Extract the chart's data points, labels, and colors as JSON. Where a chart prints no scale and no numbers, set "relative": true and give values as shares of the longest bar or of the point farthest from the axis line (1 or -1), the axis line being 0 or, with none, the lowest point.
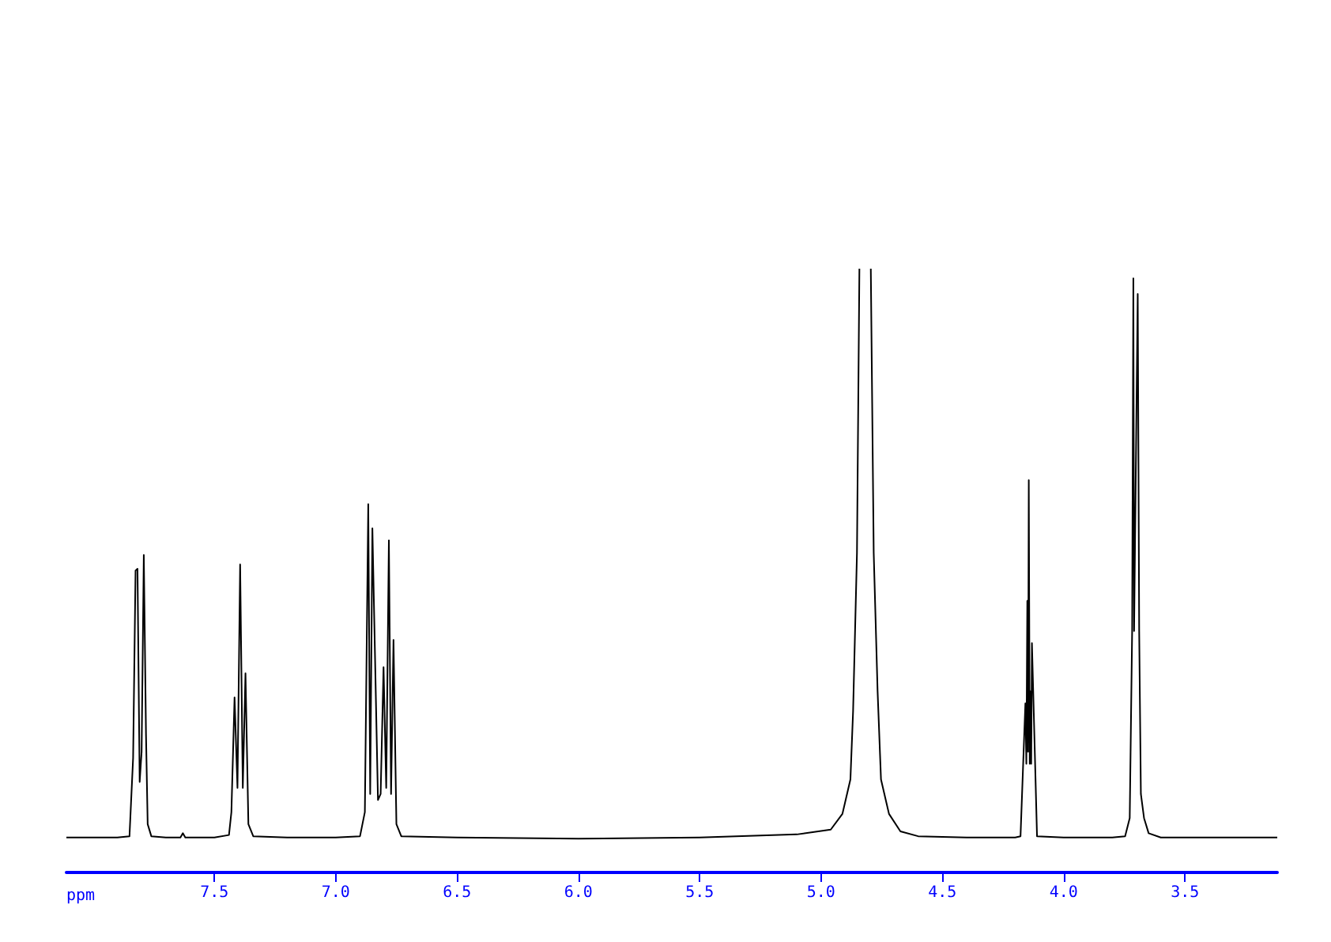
{
  "chart_data": {
    "type": "line",
    "relative": true,
    "xlabel": "ppm",
    "xlim": [
      8.11,
      3.12
    ],
    "xticks": [
      7.5,
      {
        "value": 7,
        "label": "7.0"
      },
      6.5,
      {
        "value": 6,
        "label": "6.0"
      },
      5.5,
      {
        "value": 5,
        "label": "5.0"
      },
      4.5,
      {
        "value": 4,
        "label": "4.0"
      },
      3.5
    ],
    "series": [
      {
        "color": "#000000",
        "x": [
          8.11,
          7.9,
          7.85,
          7.835,
          7.825,
          7.817,
          7.808,
          7.8,
          7.791,
          7.782,
          7.775,
          7.76,
          7.7,
          7.64,
          7.63,
          7.62,
          7.5,
          7.44,
          7.43,
          7.417,
          7.405,
          7.394,
          7.383,
          7.372,
          7.36,
          7.34,
          7.2,
          7.0,
          6.9,
          6.88,
          6.866,
          6.858,
          6.849,
          6.826,
          6.815,
          6.803,
          6.792,
          6.781,
          6.772,
          6.762,
          6.75,
          6.73,
          6.5,
          6.0,
          5.5,
          5.1,
          4.96,
          4.912,
          4.879,
          4.868,
          4.852,
          4.842,
          4.818,
          4.795,
          4.783,
          4.767,
          4.753,
          4.72,
          4.673,
          4.6,
          4.4,
          4.2,
          4.178,
          4.158,
          4.154,
          4.15,
          4.147,
          4.144,
          4.14,
          4.137,
          4.134,
          4.131,
          4.11,
          4.0,
          3.8,
          3.747,
          3.728,
          3.718,
          3.713,
          3.71,
          3.695,
          3.689,
          3.682,
          3.669,
          3.65,
          3.6,
          3.4,
          3.12
        ],
        "values": [
          0.058,
          0.058,
          0.06,
          0.19,
          0.5,
          0.503,
          0.15,
          0.2,
          0.526,
          0.23,
          0.08,
          0.06,
          0.058,
          0.058,
          0.065,
          0.058,
          0.058,
          0.062,
          0.1,
          0.29,
          0.14,
          0.51,
          0.14,
          0.33,
          0.08,
          0.06,
          0.058,
          0.058,
          0.06,
          0.1,
          0.61,
          0.13,
          0.57,
          0.12,
          0.13,
          0.34,
          0.14,
          0.55,
          0.13,
          0.385,
          0.08,
          0.06,
          0.058,
          0.056,
          0.058,
          0.063,
          0.071,
          0.097,
          0.154,
          0.267,
          0.529,
          1,
          null,
          1,
          0.529,
          0.3,
          0.154,
          0.097,
          0.068,
          0.06,
          0.058,
          0.058,
          0.06,
          0.28,
          0.18,
          0.45,
          0.2,
          0.65,
          0.18,
          0.3,
          0.18,
          0.38,
          0.06,
          0.058,
          0.058,
          0.06,
          0.09,
          0.4,
          0.984,
          0.4,
          0.958,
          0.4,
          0.13,
          0.09,
          0.065,
          0.058,
          0.058,
          0.058
        ]
      }
    ]
  }
}
